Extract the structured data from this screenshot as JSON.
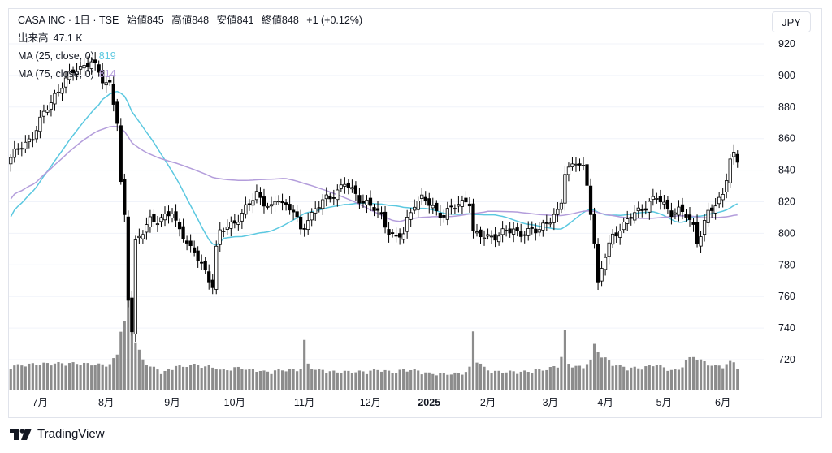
{
  "header": {
    "symbol_line": "CASA INC · 1日 · TSE",
    "open_label": "始値",
    "open": "845",
    "high_label": "高値",
    "high": "848",
    "low_label": "安値",
    "low": "841",
    "close_label": "終値",
    "close": "848",
    "change": "+1 (+0.12%)"
  },
  "legend": {
    "volume_label": "出来高",
    "volume_value": "47.1 K",
    "ma25_label": "MA (25, close, 0)",
    "ma25_value": "819",
    "ma75_label": "MA (75, close, 0)",
    "ma75_value": "814"
  },
  "currency": "JPY",
  "brand": "TradingView",
  "colors": {
    "ma25": "#5bc8e0",
    "ma75": "#b39ddb",
    "up_body": "#ffffff",
    "down_body": "#000000",
    "candle_line": "#000000",
    "volume": "#8c8c8c",
    "grid": "#f0f3fa"
  },
  "chart_data": {
    "type": "candlestick",
    "ylim": [
      705,
      930
    ],
    "y_ticks": [
      720,
      740,
      760,
      780,
      800,
      820,
      840,
      860,
      880,
      900,
      920
    ],
    "x_labels": [
      "7月",
      "8月",
      "9月",
      "10月",
      "11月",
      "12月",
      "2025",
      "2月",
      "3月",
      "4月",
      "5月",
      "6月"
    ],
    "anchors": [
      [
        0,
        848,
        55
      ],
      [
        6,
        862,
        60
      ],
      [
        12,
        888,
        62
      ],
      [
        18,
        905,
        62
      ],
      [
        22,
        908,
        60
      ],
      [
        25,
        898,
        58
      ],
      [
        27,
        895,
        60
      ],
      [
        29,
        870,
        85
      ],
      [
        30,
        830,
        150
      ],
      [
        31,
        810,
        170
      ],
      [
        32,
        760,
        250
      ],
      [
        33,
        740,
        160
      ],
      [
        34,
        795,
        120
      ],
      [
        36,
        800,
        70
      ],
      [
        38,
        808,
        55
      ],
      [
        41,
        810,
        40
      ],
      [
        44,
        812,
        45
      ],
      [
        45,
        806,
        60
      ],
      [
        47,
        800,
        50
      ],
      [
        49,
        790,
        60
      ],
      [
        52,
        780,
        55
      ],
      [
        54,
        772,
        55
      ],
      [
        55,
        768,
        50
      ],
      [
        56,
        790,
        55
      ],
      [
        57,
        800,
        45
      ],
      [
        59,
        804,
        45
      ],
      [
        61,
        808,
        50
      ],
      [
        63,
        812,
        50
      ],
      [
        65,
        818,
        45
      ],
      [
        67,
        826,
        45
      ],
      [
        69,
        820,
        40
      ],
      [
        71,
        815,
        40
      ],
      [
        73,
        822,
        45
      ],
      [
        75,
        818,
        45
      ],
      [
        77,
        815,
        45
      ],
      [
        78,
        808,
        45
      ],
      [
        79,
        800,
        50
      ],
      [
        80,
        804,
        120
      ],
      [
        81,
        810,
        60
      ],
      [
        83,
        816,
        45
      ],
      [
        85,
        820,
        45
      ],
      [
        87,
        822,
        40
      ],
      [
        89,
        828,
        40
      ],
      [
        91,
        832,
        40
      ],
      [
        93,
        826,
        40
      ],
      [
        95,
        822,
        40
      ],
      [
        97,
        820,
        40
      ],
      [
        99,
        815,
        45
      ],
      [
        101,
        810,
        45
      ],
      [
        103,
        802,
        40
      ],
      [
        105,
        797,
        40
      ],
      [
        107,
        799,
        45
      ],
      [
        108,
        808,
        45
      ],
      [
        110,
        820,
        45
      ],
      [
        112,
        822,
        40
      ],
      [
        114,
        818,
        35
      ],
      [
        116,
        814,
        35
      ],
      [
        118,
        812,
        35
      ],
      [
        120,
        815,
        35
      ],
      [
        122,
        818,
        35
      ],
      [
        124,
        822,
        40
      ],
      [
        125,
        820,
        50
      ],
      [
        126,
        800,
        145
      ],
      [
        127,
        798,
        70
      ],
      [
        129,
        798,
        50
      ],
      [
        131,
        799,
        40
      ],
      [
        133,
        798,
        40
      ],
      [
        135,
        801,
        40
      ],
      [
        137,
        803,
        40
      ],
      [
        139,
        800,
        40
      ],
      [
        141,
        800,
        40
      ],
      [
        143,
        802,
        45
      ],
      [
        145,
        806,
        45
      ],
      [
        147,
        808,
        50
      ],
      [
        149,
        812,
        55
      ],
      [
        150,
        820,
        80
      ],
      [
        151,
        840,
        145
      ],
      [
        152,
        842,
        60
      ],
      [
        154,
        845,
        55
      ],
      [
        156,
        840,
        50
      ],
      [
        157,
        830,
        65
      ],
      [
        158,
        815,
        70
      ],
      [
        159,
        795,
        110
      ],
      [
        160,
        768,
        95
      ],
      [
        161,
        778,
        80
      ],
      [
        162,
        785,
        75
      ],
      [
        164,
        798,
        60
      ],
      [
        166,
        804,
        55
      ],
      [
        168,
        808,
        50
      ],
      [
        170,
        812,
        50
      ],
      [
        172,
        816,
        50
      ],
      [
        174,
        820,
        55
      ],
      [
        176,
        822,
        60
      ],
      [
        178,
        818,
        50
      ],
      [
        180,
        814,
        45
      ],
      [
        182,
        814,
        45
      ],
      [
        184,
        811,
        70
      ],
      [
        186,
        805,
        80
      ],
      [
        187,
        796,
        75
      ],
      [
        188,
        800,
        70
      ],
      [
        190,
        812,
        60
      ],
      [
        192,
        818,
        55
      ],
      [
        194,
        826,
        55
      ],
      [
        195,
        836,
        60
      ],
      [
        196,
        846,
        65
      ],
      [
        197,
        848,
        65
      ],
      [
        198,
        845,
        55
      ]
    ]
  }
}
